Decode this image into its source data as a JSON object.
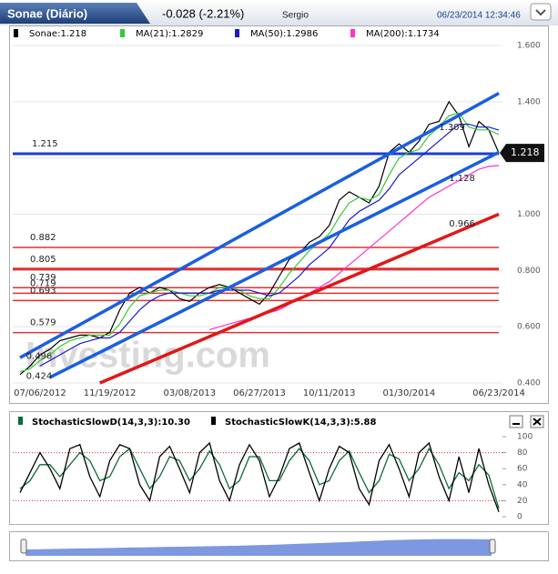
{
  "header": {
    "title": "Sonae (Diário)",
    "change": "-0.028 (-2.21%)",
    "user": "Sergio",
    "datetime": "06/23/2014 12:34:46"
  },
  "chart_data": [
    {
      "type": "line",
      "watermark": "Investing.com",
      "categories": [
        null,
        null,
        "07/06/2012",
        null,
        null,
        null,
        null,
        null,
        null,
        "11/19/2012",
        null,
        null,
        null,
        null,
        null,
        null,
        null,
        "03/08/2013",
        null,
        null,
        null,
        null,
        null,
        null,
        "06/27/2013",
        null,
        null,
        null,
        null,
        null,
        null,
        "10/11/2013",
        null,
        null,
        null,
        null,
        null,
        null,
        null,
        "01/30/2014",
        null,
        null,
        null,
        null,
        null,
        null,
        null,
        null,
        "06/23/2014"
      ],
      "series": [
        {
          "name": "Sonae:1.218",
          "color": "#000000",
          "values": [
            0.43,
            0.46,
            0.5,
            0.52,
            0.55,
            0.56,
            0.57,
            0.57,
            0.56,
            0.58,
            0.66,
            0.72,
            0.74,
            0.72,
            0.74,
            0.73,
            0.7,
            0.69,
            0.72,
            0.74,
            0.75,
            0.74,
            0.72,
            0.7,
            0.68,
            0.72,
            0.78,
            0.84,
            0.86,
            0.9,
            0.92,
            0.96,
            1.05,
            1.08,
            1.06,
            1.04,
            1.1,
            1.22,
            1.25,
            1.22,
            1.26,
            1.32,
            1.33,
            1.4,
            1.35,
            1.24,
            1.33,
            1.3,
            1.218
          ]
        },
        {
          "name": "MA(21):1.2829",
          "color": "#33cc33",
          "values": [
            0.44,
            0.45,
            0.48,
            0.5,
            0.53,
            0.55,
            0.56,
            0.57,
            0.57,
            0.57,
            0.61,
            0.67,
            0.71,
            0.72,
            0.73,
            0.73,
            0.72,
            0.71,
            0.71,
            0.72,
            0.74,
            0.74,
            0.73,
            0.71,
            0.7,
            0.7,
            0.74,
            0.79,
            0.83,
            0.87,
            0.9,
            0.93,
            0.99,
            1.04,
            1.06,
            1.05,
            1.07,
            1.14,
            1.2,
            1.22,
            1.23,
            1.28,
            1.31,
            1.35,
            1.36,
            1.31,
            1.3,
            1.3,
            1.283
          ]
        },
        {
          "name": "MA(50):1.2986",
          "color": "#1a1acc",
          "values": [
            null,
            null,
            0.46,
            0.48,
            0.5,
            0.52,
            0.54,
            0.55,
            0.56,
            0.56,
            0.58,
            0.62,
            0.66,
            0.69,
            0.71,
            0.72,
            0.72,
            0.72,
            0.72,
            0.72,
            0.73,
            0.73,
            0.73,
            0.73,
            0.72,
            0.71,
            0.72,
            0.75,
            0.78,
            0.82,
            0.85,
            0.88,
            0.93,
            0.98,
            1.01,
            1.03,
            1.05,
            1.09,
            1.14,
            1.17,
            1.2,
            1.23,
            1.26,
            1.29,
            1.32,
            1.32,
            1.31,
            1.31,
            1.299
          ]
        },
        {
          "name": "MA(200):1.1734",
          "color": "#ff33cc",
          "values": [
            null,
            null,
            null,
            null,
            null,
            null,
            null,
            null,
            null,
            null,
            null,
            null,
            null,
            null,
            null,
            null,
            null,
            null,
            null,
            0.59,
            0.6,
            0.61,
            0.62,
            0.63,
            0.64,
            0.65,
            0.66,
            0.68,
            0.7,
            0.72,
            0.74,
            0.76,
            0.79,
            0.82,
            0.85,
            0.88,
            0.91,
            0.94,
            0.97,
            1.0,
            1.03,
            1.06,
            1.08,
            1.1,
            1.12,
            1.14,
            1.16,
            1.17,
            1.173
          ]
        }
      ],
      "ylim": [
        0.4,
        1.6
      ],
      "yticks": [
        {
          "value": 0.4,
          "label": "0.400"
        },
        {
          "value": 0.6,
          "label": "0.600"
        },
        {
          "value": 0.8,
          "label": "0.800"
        },
        {
          "value": 1.0,
          "label": "1.000"
        },
        {
          "value": 1.2,
          "label": "1.200"
        },
        {
          "value": 1.4,
          "label": "1.400"
        },
        {
          "value": 1.6,
          "label": "1.600"
        }
      ],
      "grid": true,
      "hlines": [
        {
          "value": 1.215,
          "color": "#1a3fcc"
        },
        {
          "value": 0.882,
          "color": "#e03030"
        },
        {
          "value": 0.805,
          "color": "#e03030"
        },
        {
          "value": 0.739,
          "color": "#e03030"
        },
        {
          "value": 0.719,
          "color": "#e03030"
        },
        {
          "value": 0.693,
          "color": "#e03030"
        },
        {
          "value": 0.579,
          "color": "#e03030"
        }
      ],
      "trendlines": [
        {
          "color": "#1a5fe0",
          "x": [
            0,
            48
          ],
          "values": [
            0.49,
            1.43
          ]
        },
        {
          "color": "#1a5fe0",
          "x": [
            3,
            48
          ],
          "values": [
            0.42,
            1.22
          ]
        },
        {
          "color": "#e01818",
          "x": [
            8,
            48
          ],
          "values": [
            0.4,
            1.0
          ]
        }
      ],
      "annotations": [
        {
          "x": 43,
          "value": 1.128
        },
        {
          "x": 43,
          "value": 0.966
        },
        {
          "x": 42,
          "value": 1.309
        },
        {
          "x": 0.6,
          "value": 0.496
        },
        {
          "x": 0.6,
          "value": 0.424
        }
      ]
    },
    {
      "type": "line",
      "series": [
        {
          "name": "StochasticSlowD(14,3,3):10.30",
          "color": "#0b6b3a",
          "values": [
            35,
            45,
            65,
            65,
            50,
            65,
            80,
            70,
            45,
            50,
            75,
            85,
            60,
            35,
            50,
            75,
            70,
            45,
            60,
            82,
            65,
            35,
            45,
            75,
            75,
            45,
            45,
            70,
            85,
            70,
            40,
            45,
            70,
            82,
            55,
            30,
            45,
            78,
            72,
            45,
            60,
            85,
            65,
            35,
            55,
            45,
            65,
            52,
            10.3
          ]
        },
        {
          "name": "StochasticSlowK(14,3,3):5.88",
          "color": "#000000",
          "values": [
            30,
            55,
            80,
            60,
            35,
            85,
            90,
            50,
            25,
            70,
            90,
            85,
            40,
            20,
            75,
            88,
            60,
            30,
            80,
            92,
            45,
            20,
            65,
            90,
            70,
            25,
            50,
            85,
            92,
            55,
            20,
            60,
            88,
            80,
            35,
            15,
            70,
            90,
            60,
            25,
            80,
            92,
            50,
            20,
            75,
            30,
            85,
            40,
            5.88
          ]
        }
      ],
      "ylim": [
        0,
        100
      ],
      "yticks": [
        0,
        20,
        40,
        60,
        80,
        100
      ],
      "ref_lines": [
        20,
        80
      ]
    }
  ]
}
